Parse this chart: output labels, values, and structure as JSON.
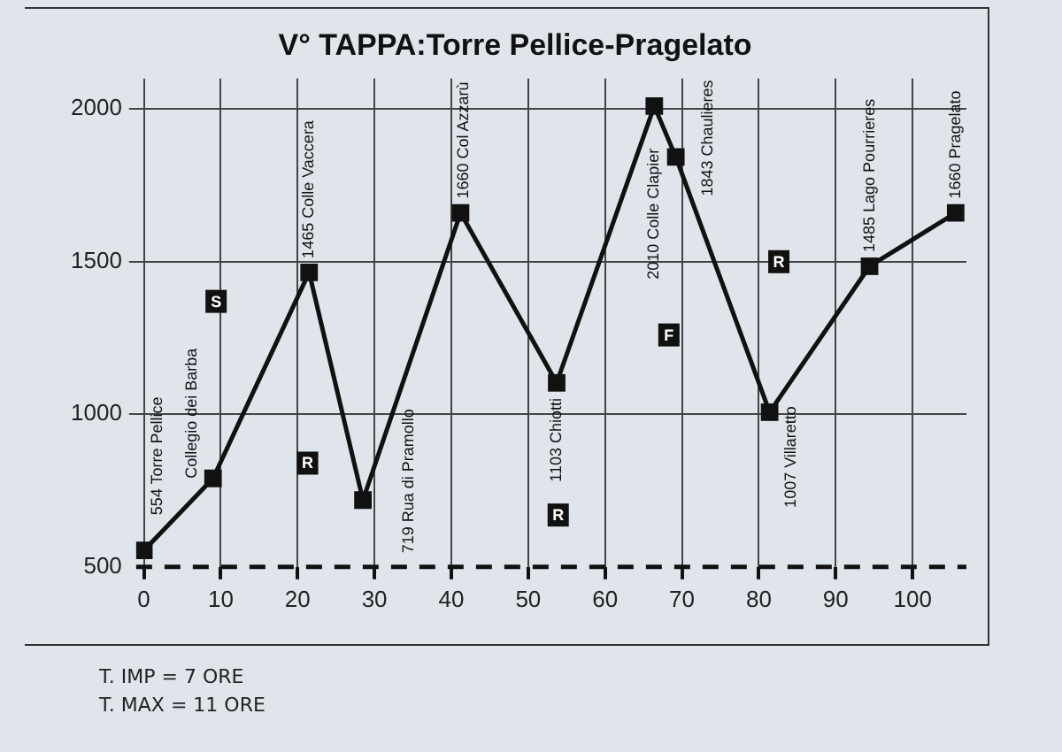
{
  "chart_data": {
    "type": "line",
    "title": "V° TAPPA:Torre Pellice-Pragelato",
    "x": [
      0,
      9,
      21.5,
      28.5,
      41.2,
      53.7,
      66.4,
      69.2,
      81.4,
      94.4,
      105.6
    ],
    "series": [
      {
        "color": "#111111",
        "values": [
          554,
          790,
          1465,
          719,
          1660,
          1103,
          2010,
          1843,
          1007,
          1485,
          1660
        ]
      }
    ],
    "xlim": [
      -1,
      107
    ],
    "xticks": [
      0,
      10,
      20,
      30,
      40,
      50,
      60,
      70,
      80,
      90,
      100
    ],
    "ylim": [
      500,
      2100
    ],
    "yticks": [
      500,
      1000,
      1500,
      2000
    ],
    "grid": true,
    "marker": "square",
    "line_style": "solid",
    "legend": false,
    "ref_lines": [
      {
        "axis": "y",
        "value": 500,
        "line_style": "dashed",
        "color": "#111111"
      }
    ],
    "annotations": [
      {
        "text": "554 Torre Pellice",
        "x": 0,
        "y": 554
      },
      {
        "text": "Collegio dei Barba",
        "x": 9,
        "y": 790
      },
      {
        "text": "1465 Colle Vaccera",
        "x": 21.5,
        "y": 1465
      },
      {
        "text": "719 Rua di Pramollo",
        "x": 28.5,
        "y": 719
      },
      {
        "text": "1660 Col Azzarù",
        "x": 41.2,
        "y": 1660
      },
      {
        "text": "1103 Chiotti",
        "x": 53.7,
        "y": 1103
      },
      {
        "text": "2010 Colle Clapier",
        "x": 66.4,
        "y": 2010
      },
      {
        "text": "1843 Chaulieres",
        "x": 69.2,
        "y": 1843
      },
      {
        "text": "1007 Villaretto",
        "x": 81.4,
        "y": 1007
      },
      {
        "text": "1485 Lago Pourrieres",
        "x": 94.4,
        "y": 1485
      },
      {
        "text": "1660 Pragelato",
        "x": 105.6,
        "y": 1660
      },
      {
        "text": "S",
        "x": 9.4,
        "y": 1370
      },
      {
        "text": "R",
        "x": 21.3,
        "y": 840
      },
      {
        "text": "R",
        "x": 53.9,
        "y": 670
      },
      {
        "text": "F",
        "x": 68.3,
        "y": 1260
      },
      {
        "text": "R",
        "x": 82.6,
        "y": 1500
      },
      "T. IMP = 7 ORE",
      "T. MAX = 11 ORE"
    ]
  }
}
